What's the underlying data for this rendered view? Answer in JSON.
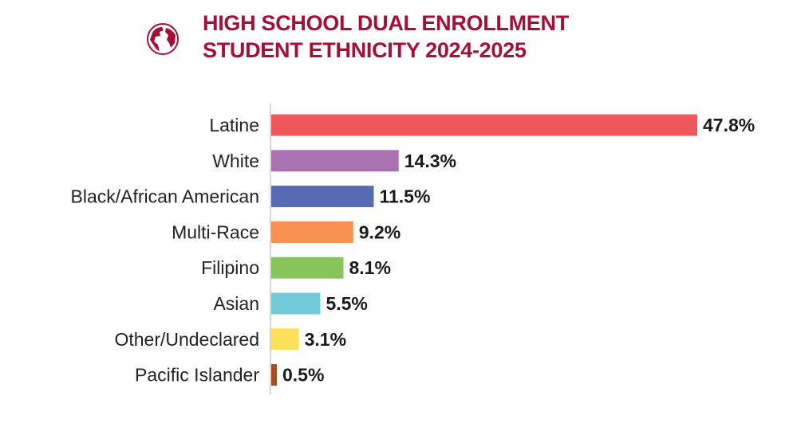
{
  "title_lines": [
    "HIGH SCHOOL DUAL ENROLLMENT",
    "STUDENT ETHNICITY 2024-2025"
  ],
  "title_color": "#a50f36",
  "icon": "globe-icon",
  "chart_data": {
    "type": "bar",
    "orientation": "horizontal",
    "title": "HIGH SCHOOL DUAL ENROLLMENT STUDENT ETHNICITY 2024-2025",
    "categories": [
      "Latine",
      "White",
      "Black/African American",
      "Multi-Race",
      "Filipino",
      "Asian",
      "Other/Undeclared",
      "Pacific Islander"
    ],
    "values": [
      47.8,
      14.3,
      11.5,
      9.2,
      8.1,
      5.5,
      3.1,
      0.5
    ],
    "data_labels": [
      "47.8%",
      "14.3%",
      "11.5%",
      "9.2%",
      "8.1%",
      "5.5%",
      "3.1%",
      "0.5%"
    ],
    "colors": [
      "#ef585a",
      "#ab72b1",
      "#566bb4",
      "#f8914f",
      "#87c55a",
      "#72cad8",
      "#fde05a",
      "#a64b27"
    ],
    "unit": "%",
    "grid": false,
    "legend": "none"
  }
}
